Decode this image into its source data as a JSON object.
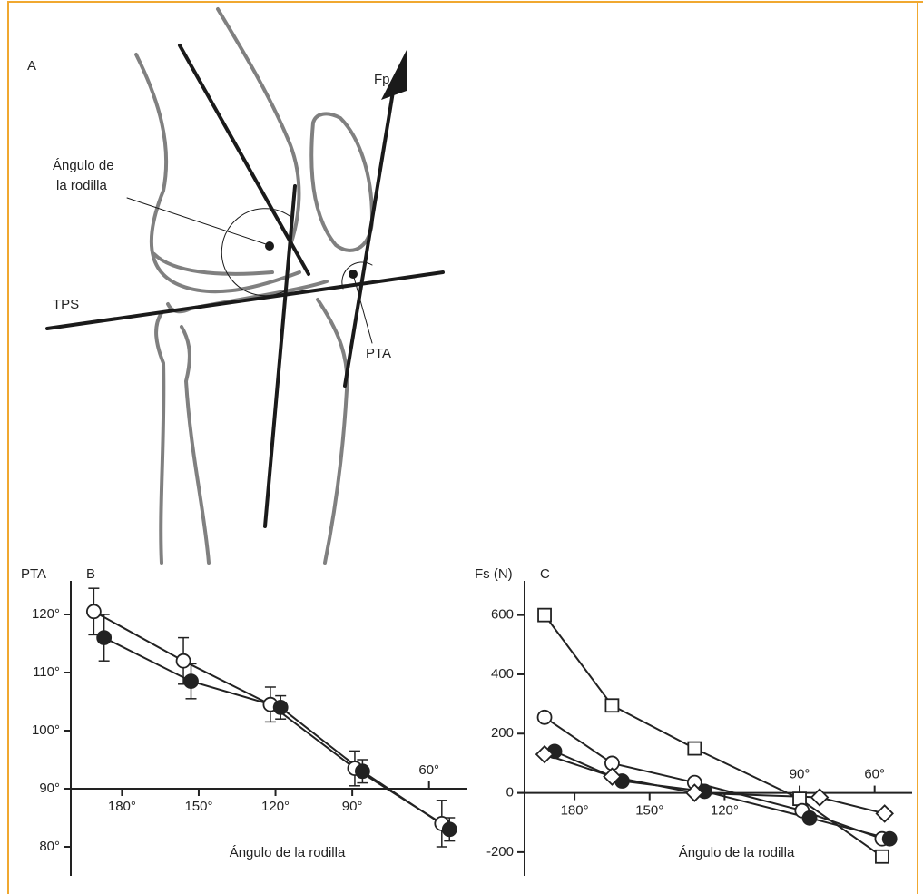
{
  "diagram": {
    "panel": "A",
    "force_label": "Fp",
    "knee_angle_label": [
      "Ángulo de",
      "la rodilla"
    ],
    "plateau_label": "TPS",
    "angle_label": "PTA"
  },
  "chart_data": [
    {
      "type": "line",
      "panel": "B",
      "y_label": "PTA",
      "x_label": "Ángulo de la rodilla",
      "xlim": [
        200,
        45
      ],
      "ylim": [
        75,
        125
      ],
      "x_axis_at": 90,
      "xticks": [
        {
          "value": 180,
          "label": "180°"
        },
        {
          "value": 150,
          "label": "150°"
        },
        {
          "value": 120,
          "label": "120°"
        },
        {
          "value": 90,
          "label": "90°"
        },
        {
          "value": 60,
          "label": "60°"
        }
      ],
      "yticks": [
        {
          "value": 80,
          "label": "80°"
        },
        {
          "value": 90,
          "label": "90°"
        },
        {
          "value": 100,
          "label": "100°"
        },
        {
          "value": 110,
          "label": "110°"
        },
        {
          "value": 120,
          "label": "120°"
        }
      ],
      "series": [
        {
          "marker": "open-circle",
          "color": "#222222",
          "x": [
            191,
            156,
            122,
            89,
            55
          ],
          "values": [
            120.5,
            112,
            104.5,
            93.5,
            84
          ],
          "error": [
            4,
            4,
            3,
            3,
            4
          ]
        },
        {
          "marker": "filled-circle",
          "color": "#222222",
          "x": [
            187,
            153,
            118,
            86,
            52
          ],
          "values": [
            116,
            108.5,
            104,
            93,
            83
          ],
          "error": [
            4,
            3,
            2,
            2,
            2
          ]
        }
      ]
    },
    {
      "type": "line",
      "panel": "C",
      "y_label": "Fs (N)",
      "x_label": "Ángulo de la rodilla",
      "xlim": [
        200,
        45
      ],
      "ylim": [
        -280,
        700
      ],
      "x_axis_at": 0,
      "xticks": [
        {
          "value": 180,
          "label": "180°"
        },
        {
          "value": 150,
          "label": "150°"
        },
        {
          "value": 120,
          "label": "120°"
        },
        {
          "value": 90,
          "label": "90°"
        },
        {
          "value": 60,
          "label": "60°"
        }
      ],
      "yticks": [
        -200,
        0,
        200,
        400,
        600
      ],
      "series": [
        {
          "marker": "open-square",
          "color": "#222222",
          "x": [
            192,
            165,
            132,
            90,
            57
          ],
          "values": [
            600,
            295,
            150,
            -20,
            -215
          ]
        },
        {
          "marker": "open-circle",
          "color": "#222222",
          "x": [
            192,
            165,
            132,
            89,
            57
          ],
          "values": [
            255,
            100,
            35,
            -60,
            -155
          ]
        },
        {
          "marker": "filled-circle",
          "color": "#222222",
          "x": [
            188,
            161,
            128,
            86,
            54
          ],
          "values": [
            140,
            40,
            5,
            -85,
            -155
          ]
        },
        {
          "marker": "open-diamond",
          "color": "#222222",
          "x": [
            192,
            165,
            132,
            82,
            56
          ],
          "values": [
            130,
            55,
            0,
            -15,
            -70
          ]
        }
      ]
    }
  ]
}
